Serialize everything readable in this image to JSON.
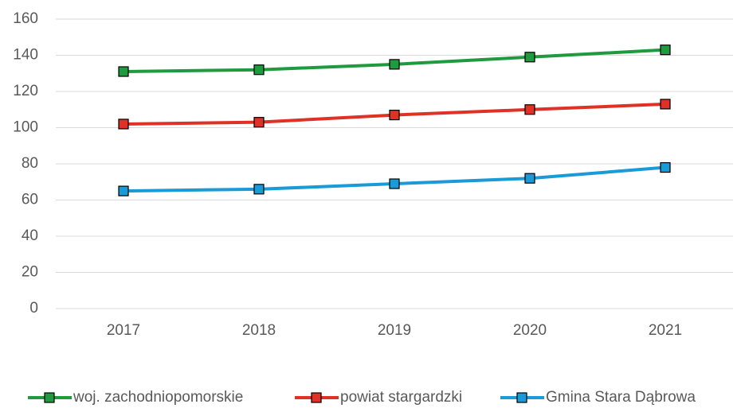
{
  "chart_data": {
    "type": "line",
    "categories": [
      "2017",
      "2018",
      "2019",
      "2020",
      "2021"
    ],
    "series": [
      {
        "name": "woj. zachodniopomorskie",
        "color": "#1f9a3f",
        "values": [
          131,
          132,
          135,
          139,
          143
        ]
      },
      {
        "name": "powiat stargardzki",
        "color": "#e03127",
        "values": [
          102,
          103,
          107,
          110,
          113
        ]
      },
      {
        "name": "Gmina Stara Dąbrowa",
        "color": "#1a9ad6",
        "values": [
          65,
          66,
          69,
          72,
          78
        ]
      }
    ],
    "ylim": [
      0,
      160
    ],
    "yticks": [
      0,
      20,
      40,
      60,
      80,
      100,
      120,
      140,
      160
    ],
    "grid": true,
    "legend": "bottom"
  }
}
